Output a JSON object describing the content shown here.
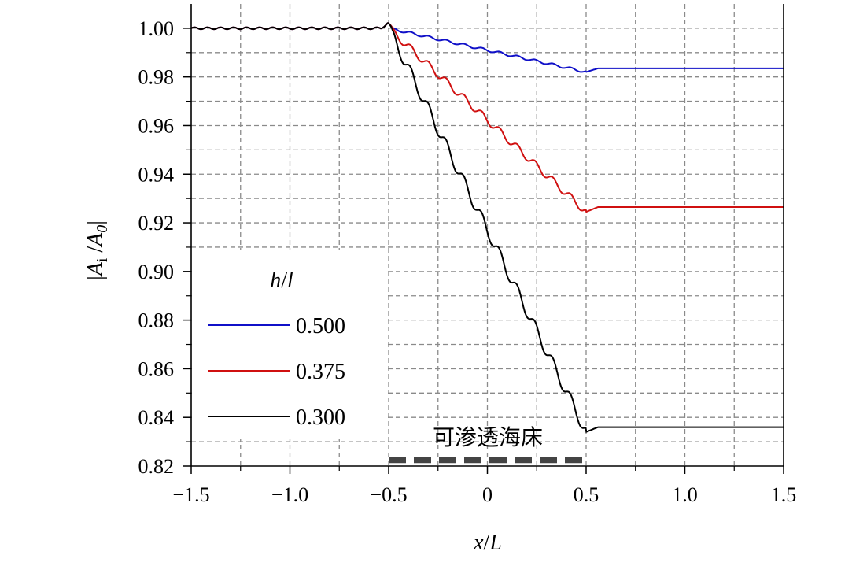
{
  "chart_data": {
    "type": "line",
    "xlabel": "x/L",
    "ylabel": "|A_i /A_0|",
    "xlim": [
      -1.5,
      1.5
    ],
    "ylim": [
      0.82,
      1.01
    ],
    "xticks": [
      -1.5,
      -1.0,
      -0.5,
      0,
      0.5,
      1.0,
      1.5
    ],
    "xtick_labels": [
      "−1.5",
      "−1.0",
      "−0.5",
      "0",
      "0.5",
      "1.0",
      "1.5"
    ],
    "yticks": [
      0.82,
      0.84,
      0.86,
      0.88,
      0.9,
      0.92,
      0.94,
      0.96,
      0.98,
      1.0
    ],
    "ytick_labels": [
      "0.82",
      "0.84",
      "0.86",
      "0.88",
      "0.90",
      "0.92",
      "0.94",
      "0.96",
      "0.98",
      "1.00"
    ],
    "grid": true,
    "legend": {
      "title": "h/l",
      "placement": "left-center"
    },
    "annotation": {
      "text": "可渗透海床",
      "x_range": [
        -0.5,
        0.5
      ],
      "y": 0.8225
    },
    "series": [
      {
        "name": "0.500",
        "color": "#1010c8",
        "start": 1.0,
        "end": 0.9835,
        "dip": 0.982,
        "oscillation": 0.0005
      },
      {
        "name": "0.375",
        "color": "#d01010",
        "start": 1.0,
        "end": 0.9265,
        "dip": 0.9245,
        "oscillation": 0.0015
      },
      {
        "name": "0.300",
        "color": "#000000",
        "start": 1.0,
        "end": 0.836,
        "dip": 0.834,
        "oscillation": 0.0025
      }
    ]
  }
}
